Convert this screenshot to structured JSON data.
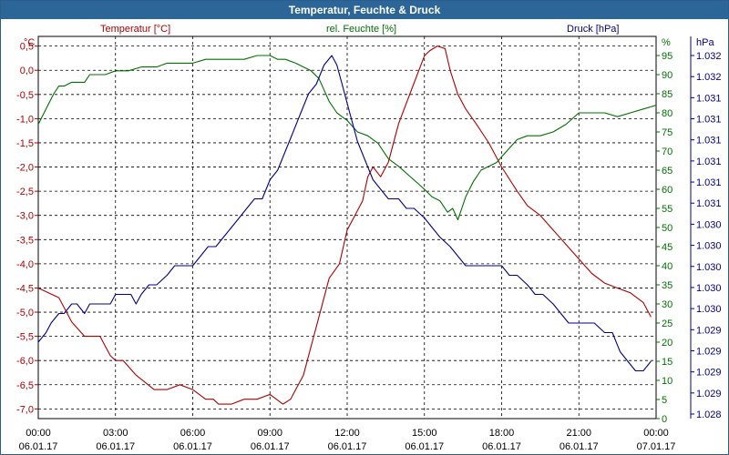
{
  "chart_data": {
    "type": "line",
    "title": "Temperatur, Feuchte & Druck",
    "colors": {
      "temperature": "#b00000",
      "humidity": "#007000",
      "pressure": "#00008b",
      "title_bg": "#2c6597"
    },
    "axes": {
      "temperature": {
        "unit_label": "°C",
        "series_label": "Temperatur [°C]",
        "ylim": [
          -7.2,
          0.7
        ],
        "ticks": [
          "0,5",
          "0,0",
          "-0,5",
          "-1,0",
          "-1,5",
          "-2,0",
          "-2,5",
          "-3,0",
          "-3,5",
          "-4,0",
          "-4,5",
          "-5,0",
          "-5,5",
          "-6,0",
          "-6,5",
          "-7,0"
        ]
      },
      "humidity": {
        "unit_label": "%",
        "series_label": "rel. Feuchte [%]",
        "ylim": [
          0,
          100
        ],
        "ticks": [
          "95",
          "90",
          "85",
          "80",
          "75",
          "70",
          "65",
          "60",
          "55",
          "50",
          "45",
          "40",
          "35",
          "30",
          "25",
          "20",
          "15",
          "10",
          "5",
          "0"
        ]
      },
      "pressure": {
        "unit_label": "hPa",
        "series_label": "Druck [hPa]",
        "ylim": [
          1028.0,
          1032.0
        ],
        "ticks": [
          "1.032",
          "1.032",
          "1.031",
          "1.031",
          "1.031",
          "1.031",
          "1.031",
          "1.031",
          "1.030",
          "1.030",
          "1.030",
          "1.030",
          "1.030",
          "1.029",
          "1.029",
          "1.029",
          "1.029",
          "1.028"
        ]
      }
    },
    "x_ticks": [
      {
        "time": "00:00",
        "date": "06.01.17"
      },
      {
        "time": "03:00",
        "date": "06.01.17"
      },
      {
        "time": "06:00",
        "date": "06.01.17"
      },
      {
        "time": "09:00",
        "date": "06.01.17"
      },
      {
        "time": "12:00",
        "date": "06.01.17"
      },
      {
        "time": "15:00",
        "date": "06.01.17"
      },
      {
        "time": "18:00",
        "date": "06.01.17"
      },
      {
        "time": "21:00",
        "date": "06.01.17"
      },
      {
        "time": "00:00",
        "date": "07.01.17"
      }
    ],
    "xlim_hours": [
      0,
      24
    ],
    "series": [
      {
        "name": "Temperatur",
        "axis": "temperature",
        "x": [
          0,
          0.8,
          1.3,
          1.8,
          2.4,
          2.8,
          3.0,
          3.3,
          3.8,
          4.5,
          5.0,
          5.5,
          6.0,
          6.5,
          6.8,
          7.0,
          7.5,
          8.0,
          8.5,
          9.0,
          9.5,
          9.8,
          10.0,
          10.3,
          10.7,
          11.0,
          11.3,
          11.7,
          12.0,
          12.3,
          12.6,
          12.8,
          13.0,
          13.3,
          13.6,
          14.0,
          14.5,
          15.0,
          15.2,
          15.5,
          15.8,
          16.0,
          16.3,
          16.6,
          17.0,
          17.5,
          18.0,
          18.6,
          19.0,
          19.5,
          20.0,
          20.5,
          21.0,
          21.5,
          22.0,
          22.5,
          23.0,
          23.5,
          23.8
        ],
        "values": [
          -4.5,
          -4.7,
          -5.2,
          -5.5,
          -5.5,
          -5.9,
          -6.0,
          -6.0,
          -6.3,
          -6.6,
          -6.6,
          -6.5,
          -6.6,
          -6.8,
          -6.8,
          -6.9,
          -6.9,
          -6.8,
          -6.8,
          -6.7,
          -6.9,
          -6.8,
          -6.6,
          -6.3,
          -5.5,
          -4.9,
          -4.3,
          -4.0,
          -3.3,
          -3.0,
          -2.7,
          -2.2,
          -2.0,
          -2.2,
          -1.9,
          -1.1,
          -0.4,
          0.3,
          0.4,
          0.5,
          0.45,
          0.0,
          -0.5,
          -0.8,
          -1.1,
          -1.5,
          -2.0,
          -2.5,
          -2.8,
          -3.0,
          -3.3,
          -3.6,
          -3.9,
          -4.2,
          -4.4,
          -4.5,
          -4.6,
          -4.8,
          -5.1
        ]
      },
      {
        "name": "rel. Feuchte",
        "axis": "humidity",
        "x": [
          0,
          0.3,
          0.6,
          0.8,
          1.0,
          1.3,
          1.8,
          2.0,
          2.2,
          2.6,
          3.0,
          3.5,
          4.0,
          4.6,
          5.0,
          5.5,
          6.0,
          6.5,
          7.0,
          7.5,
          8.0,
          8.5,
          9.0,
          9.3,
          9.6,
          10.0,
          10.3,
          10.6,
          10.9,
          11.1,
          11.3,
          11.6,
          12.0,
          12.4,
          12.8,
          13.2,
          13.6,
          14.0,
          14.5,
          15.0,
          15.3,
          15.6,
          15.9,
          16.1,
          16.3,
          16.6,
          16.9,
          17.2,
          17.5,
          17.8,
          18.2,
          18.6,
          19.0,
          19.5,
          20.0,
          20.5,
          21.0,
          21.5,
          22.0,
          22.5,
          23.0,
          23.5,
          24.0
        ],
        "values": [
          77,
          81,
          85,
          87,
          87,
          88,
          88,
          90,
          90,
          90,
          91,
          91,
          92,
          92,
          93,
          93,
          93,
          94,
          94,
          94,
          94,
          95,
          95,
          94,
          94,
          93,
          92,
          91,
          89,
          86,
          83,
          80,
          78,
          75,
          74,
          72,
          68,
          66,
          63,
          60,
          58,
          57,
          54,
          55,
          52,
          58,
          62,
          65,
          66,
          67,
          70,
          73,
          74,
          74,
          75,
          77,
          80,
          80,
          80,
          79,
          80,
          81,
          82
        ]
      },
      {
        "name": "Druck",
        "axis": "pressure",
        "x": [
          0,
          0.3,
          0.5,
          0.8,
          1.0,
          1.3,
          1.5,
          1.8,
          2.0,
          2.2,
          2.5,
          2.8,
          3.0,
          3.3,
          3.6,
          3.8,
          4.0,
          4.3,
          4.6,
          5.0,
          5.3,
          5.6,
          6.0,
          6.3,
          6.6,
          6.9,
          7.2,
          7.5,
          7.8,
          8.1,
          8.4,
          8.7,
          9.0,
          9.3,
          9.6,
          9.9,
          10.2,
          10.5,
          10.8,
          11.1,
          11.4,
          11.6,
          11.8,
          12.1,
          12.4,
          12.7,
          13.0,
          13.3,
          13.6,
          14.0,
          14.3,
          14.6,
          15.0,
          15.3,
          15.6,
          16.0,
          16.3,
          16.6,
          17.0,
          17.3,
          17.6,
          18.0,
          18.3,
          18.6,
          19.0,
          19.3,
          19.6,
          20.0,
          20.3,
          20.6,
          21.0,
          21.3,
          21.6,
          22.0,
          22.3,
          22.6,
          22.9,
          23.2,
          23.5,
          23.8
        ],
        "values": [
          1028.8,
          1028.9,
          1029.0,
          1029.1,
          1029.1,
          1029.2,
          1029.2,
          1029.1,
          1029.2,
          1029.2,
          1029.2,
          1029.2,
          1029.3,
          1029.3,
          1029.3,
          1029.2,
          1029.3,
          1029.4,
          1029.4,
          1029.5,
          1029.6,
          1029.6,
          1029.6,
          1029.7,
          1029.8,
          1029.8,
          1029.9,
          1030.0,
          1030.1,
          1030.2,
          1030.3,
          1030.3,
          1030.5,
          1030.6,
          1030.8,
          1031.0,
          1031.2,
          1031.4,
          1031.5,
          1031.7,
          1031.8,
          1031.7,
          1031.5,
          1031.2,
          1030.9,
          1030.7,
          1030.5,
          1030.4,
          1030.3,
          1030.3,
          1030.2,
          1030.2,
          1030.1,
          1030.0,
          1029.9,
          1029.8,
          1029.7,
          1029.6,
          1029.6,
          1029.6,
          1029.6,
          1029.6,
          1029.5,
          1029.5,
          1029.4,
          1029.3,
          1029.3,
          1029.2,
          1029.1,
          1029.0,
          1029.0,
          1029.0,
          1029.0,
          1028.9,
          1028.9,
          1028.7,
          1028.6,
          1028.5,
          1028.5,
          1028.6
        ]
      }
    ]
  }
}
